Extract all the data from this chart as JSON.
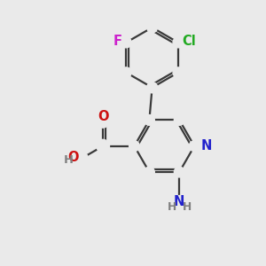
{
  "background_color": "#eaeaea",
  "bond_color": "#3a3a3a",
  "bond_width": 1.6,
  "atom_colors": {
    "N": "#2222cc",
    "O": "#cc1111",
    "F": "#cc22cc",
    "Cl": "#22aa22",
    "C": "#3a3a3a",
    "H": "#808080"
  },
  "font_size": 10.5,
  "font_size_small": 9.5
}
